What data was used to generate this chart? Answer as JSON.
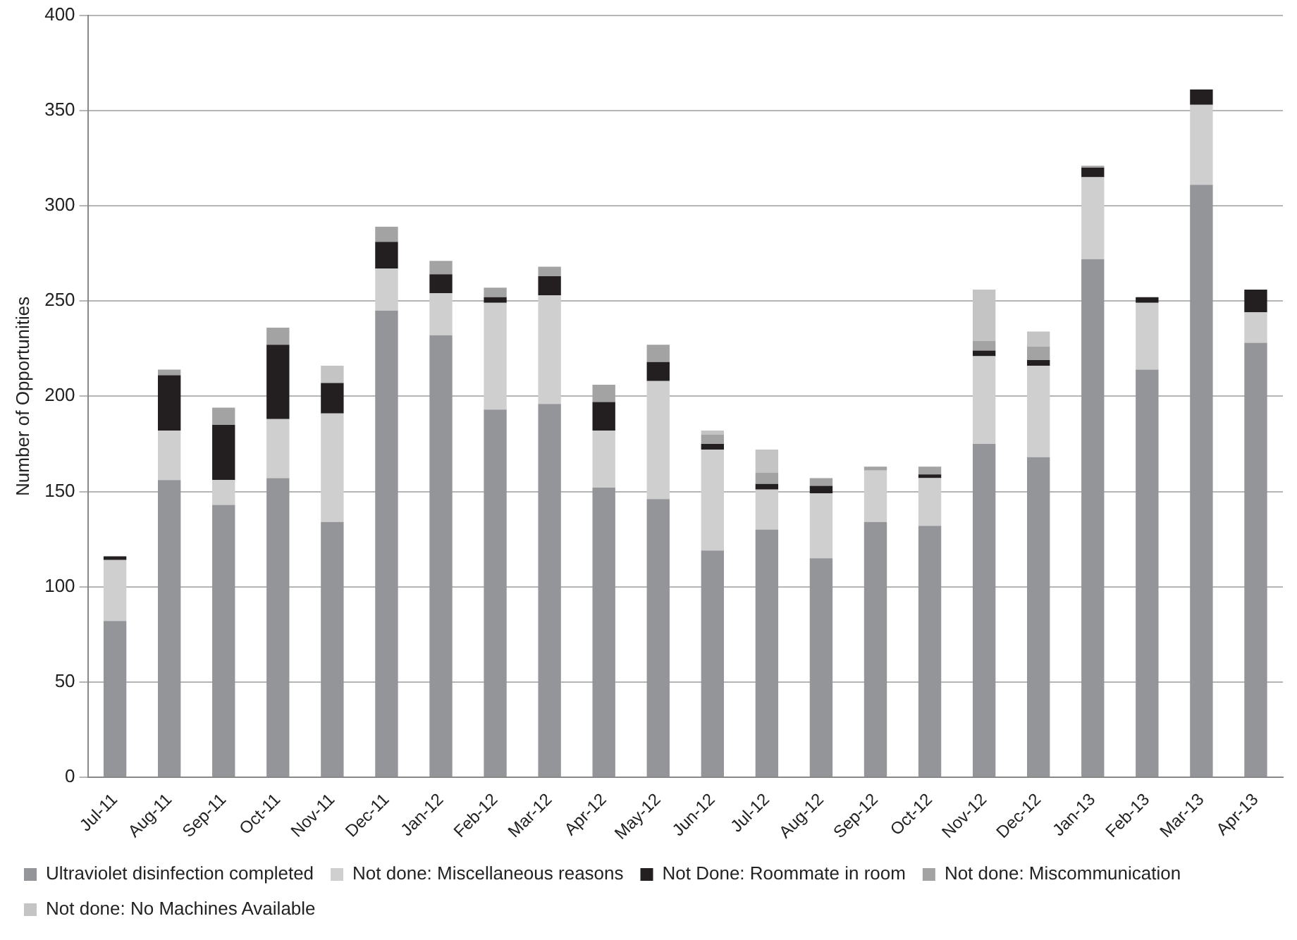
{
  "chart_data": {
    "type": "bar",
    "stacked": true,
    "ylabel": "Number of Opportunities",
    "categories": [
      "Jul-11",
      "Aug-11",
      "Sep-11",
      "Oct-11",
      "Nov-11",
      "Dec-11",
      "Jan-12",
      "Feb-12",
      "Mar-12",
      "Apr-12",
      "May-12",
      "Jun-12",
      "Jul-12",
      "Aug-12",
      "Sep-12",
      "Oct-12",
      "Nov-12",
      "Dec-12",
      "Jan-13",
      "Feb-13",
      "Mar-13",
      "Apr-13"
    ],
    "series": [
      {
        "name": "Ultraviolet disinfection completed",
        "color": "#939598",
        "values": [
          82,
          156,
          143,
          157,
          134,
          245,
          232,
          193,
          196,
          152,
          146,
          119,
          130,
          115,
          134,
          132,
          175,
          168,
          272,
          214,
          311,
          228
        ]
      },
      {
        "name": "Not done: Miscellaneous reasons",
        "color": "#cfcfcf",
        "values": [
          32,
          26,
          13,
          31,
          57,
          22,
          22,
          56,
          57,
          30,
          62,
          53,
          21,
          34,
          27,
          25,
          46,
          48,
          43,
          35,
          42,
          16
        ]
      },
      {
        "name": "Not Done: Roommate in room",
        "color": "#231f20",
        "values": [
          2,
          29,
          29,
          39,
          16,
          14,
          10,
          3,
          10,
          15,
          10,
          3,
          3,
          4,
          0,
          2,
          3,
          3,
          5,
          3,
          8,
          12
        ]
      },
      {
        "name": "Not done: Miscommunication",
        "color": "#a3a3a3",
        "values": [
          0,
          3,
          9,
          9,
          0,
          8,
          7,
          5,
          5,
          9,
          9,
          5,
          6,
          4,
          2,
          4,
          5,
          7,
          1,
          0,
          0,
          0
        ]
      },
      {
        "name": "Not done: No Machines Available",
        "color": "#c4c4c4",
        "values": [
          0,
          0,
          0,
          0,
          9,
          0,
          0,
          0,
          0,
          0,
          0,
          2,
          12,
          0,
          0,
          0,
          27,
          8,
          0,
          0,
          0,
          0
        ]
      }
    ],
    "ylim": [
      0,
      400
    ],
    "yticks": [
      0,
      50,
      100,
      150,
      200,
      250,
      300,
      350,
      400
    ],
    "grid": "y",
    "legend": "bottom"
  }
}
